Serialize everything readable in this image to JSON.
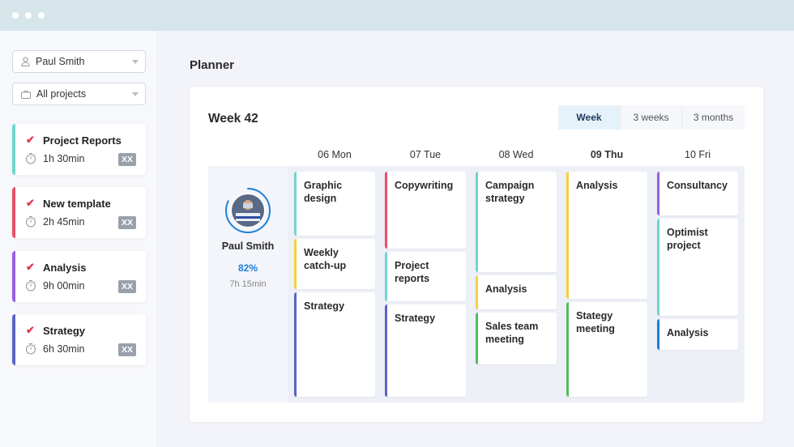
{
  "sidebar": {
    "user_select": "Paul Smith",
    "project_select": "All projects",
    "projects": [
      {
        "name": "Project Reports",
        "time": "1h 30min",
        "badge": "XX",
        "color": "#6fd6cc"
      },
      {
        "name": "New template",
        "time": "2h 45min",
        "badge": "XX",
        "color": "#e8506a"
      },
      {
        "name": "Analysis",
        "time": "9h 00min",
        "badge": "XX",
        "color": "#9a5de6"
      },
      {
        "name": "Strategy",
        "time": "6h 30min",
        "badge": "XX",
        "color": "#5b64c8"
      }
    ]
  },
  "main": {
    "title": "Planner",
    "week": "Week 42",
    "views": [
      "Week",
      "3 weeks",
      "3 months"
    ],
    "active_view": "Week",
    "days": [
      "06 Mon",
      "07 Tue",
      "08 Wed",
      "09 Thu",
      "10 Fri"
    ],
    "today": "09 Thu",
    "person": {
      "name": "Paul Smith",
      "progress": "82%",
      "progress_value": 82,
      "time": "7h 15min"
    },
    "tasks": {
      "mon": [
        "Graphic design",
        "Weekly catch-up",
        "Strategy"
      ],
      "tue": [
        "Copywriting",
        "Project reports",
        "Strategy"
      ],
      "wed": [
        "Campaign strategy",
        "Analysis",
        "Sales team meeting"
      ],
      "thu": [
        "Analysis",
        "Stategy meeting"
      ],
      "fri": [
        "Consultancy",
        "Optimist project",
        "Analysis"
      ]
    }
  },
  "colors": {
    "teal": "#6fd6cc",
    "red": "#e8506a",
    "purple": "#9a5de6",
    "indigo": "#5b64c8",
    "yellow": "#f5d13b",
    "green": "#4fbf5a",
    "blue": "#1e7fd6"
  }
}
